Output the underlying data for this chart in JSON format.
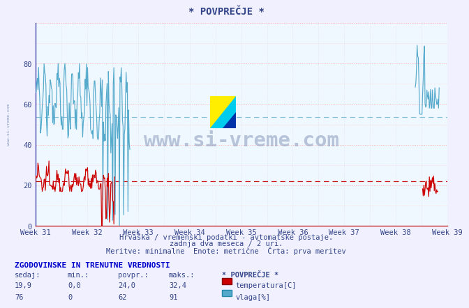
{
  "title": "* POVPREČJE *",
  "bg_color": "#f0f0ff",
  "plot_bg_color": "#f0f8ff",
  "grid_color_major_h": "#ffaaaa",
  "grid_color_major_v": "#ddddee",
  "xlim": [
    0,
    672
  ],
  "ylim": [
    0,
    100
  ],
  "yticks": [
    0,
    20,
    40,
    60,
    80
  ],
  "week_labels": [
    "Week 31",
    "Week 32",
    "Week 33",
    "Week 34",
    "Week 35",
    "Week 36",
    "Week 37",
    "Week 38",
    "Week 39"
  ],
  "week_positions": [
    0,
    84,
    168,
    252,
    336,
    420,
    504,
    588,
    672
  ],
  "temp_color": "#cc0000",
  "humidity_color": "#55aacc",
  "temp_avg_line": 22.0,
  "humidity_avg_line": 53.5,
  "subtitle1": "Hrvaška / vremenski podatki - avtomatske postaje.",
  "subtitle2": "zadnja dva meseca / 2 uri.",
  "subtitle3": "Meritve: minimalne  Enote: metrične  Črta: prva meritev",
  "footer_title": "ZGODOVINSKE IN TRENUTNE VREDNOSTI",
  "col_headers": [
    "sedaj:",
    "min.:",
    "povpr.:",
    "maks.:"
  ],
  "temp_row": [
    "19,9",
    "0,0",
    "24,0",
    "32,4"
  ],
  "humidity_row": [
    "76",
    "0",
    "62",
    "91"
  ],
  "legend_label1": "temperatura[C]",
  "legend_label2": "vlaga[%]",
  "watermark": "www.si-vreme.com",
  "spine_color": "#cc3333",
  "axis_color": "#4444aa",
  "text_color": "#334488"
}
